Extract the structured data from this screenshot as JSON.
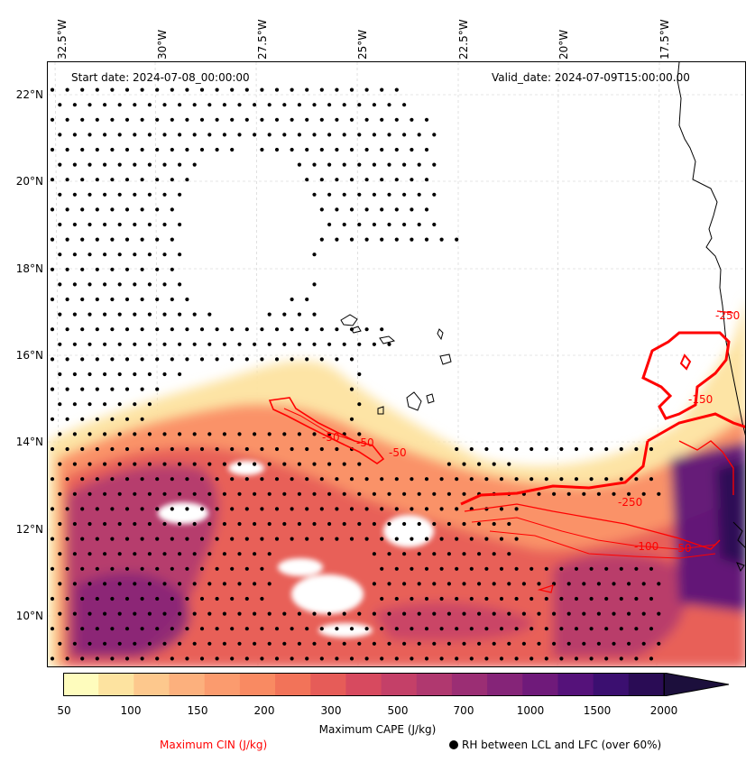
{
  "header": {
    "start_date": "Start date: 2024-07-08_00:00:00",
    "valid_date": "Valid_date: 2024-07-09T15:00:00.00"
  },
  "axes": {
    "lon_labels": [
      "32.5°W",
      "30°W",
      "27.5°W",
      "25°W",
      "22.5°W",
      "20°W",
      "17.5°W"
    ],
    "lat_labels": [
      "22°N",
      "20°N",
      "18°N",
      "16°N",
      "14°N",
      "12°N",
      "10°N"
    ]
  },
  "contour_labels": [
    "-50",
    "-50",
    "-50",
    "-50",
    "-100",
    "-250",
    "-250",
    "-150"
  ],
  "colorbar": {
    "title": "Maximum CAPE (J/kg)",
    "tick_labels": [
      "50",
      "100",
      "150",
      "200",
      "300",
      "500",
      "700",
      "1000",
      "1500",
      "2000"
    ],
    "colors": [
      "#fefcbd",
      "#fde3a0",
      "#fdc88d",
      "#fcb07d",
      "#fb9b6e",
      "#f98a62",
      "#f27359",
      "#e65c58",
      "#d74a5f",
      "#c44068",
      "#b0386f",
      "#9b2e74",
      "#852478",
      "#6f1a7a",
      "#55127a",
      "#3b0f70",
      "#2a0c55",
      "#1c0f3c"
    ]
  },
  "legend": {
    "cin_label": "Maximum CIN (J/kg)",
    "rh_label": "RH between LCL and LFC (over 60%)"
  },
  "styles": {
    "cin_color": "#ff0000",
    "grid_color": "#cccccc",
    "coast_color": "#000000"
  }
}
